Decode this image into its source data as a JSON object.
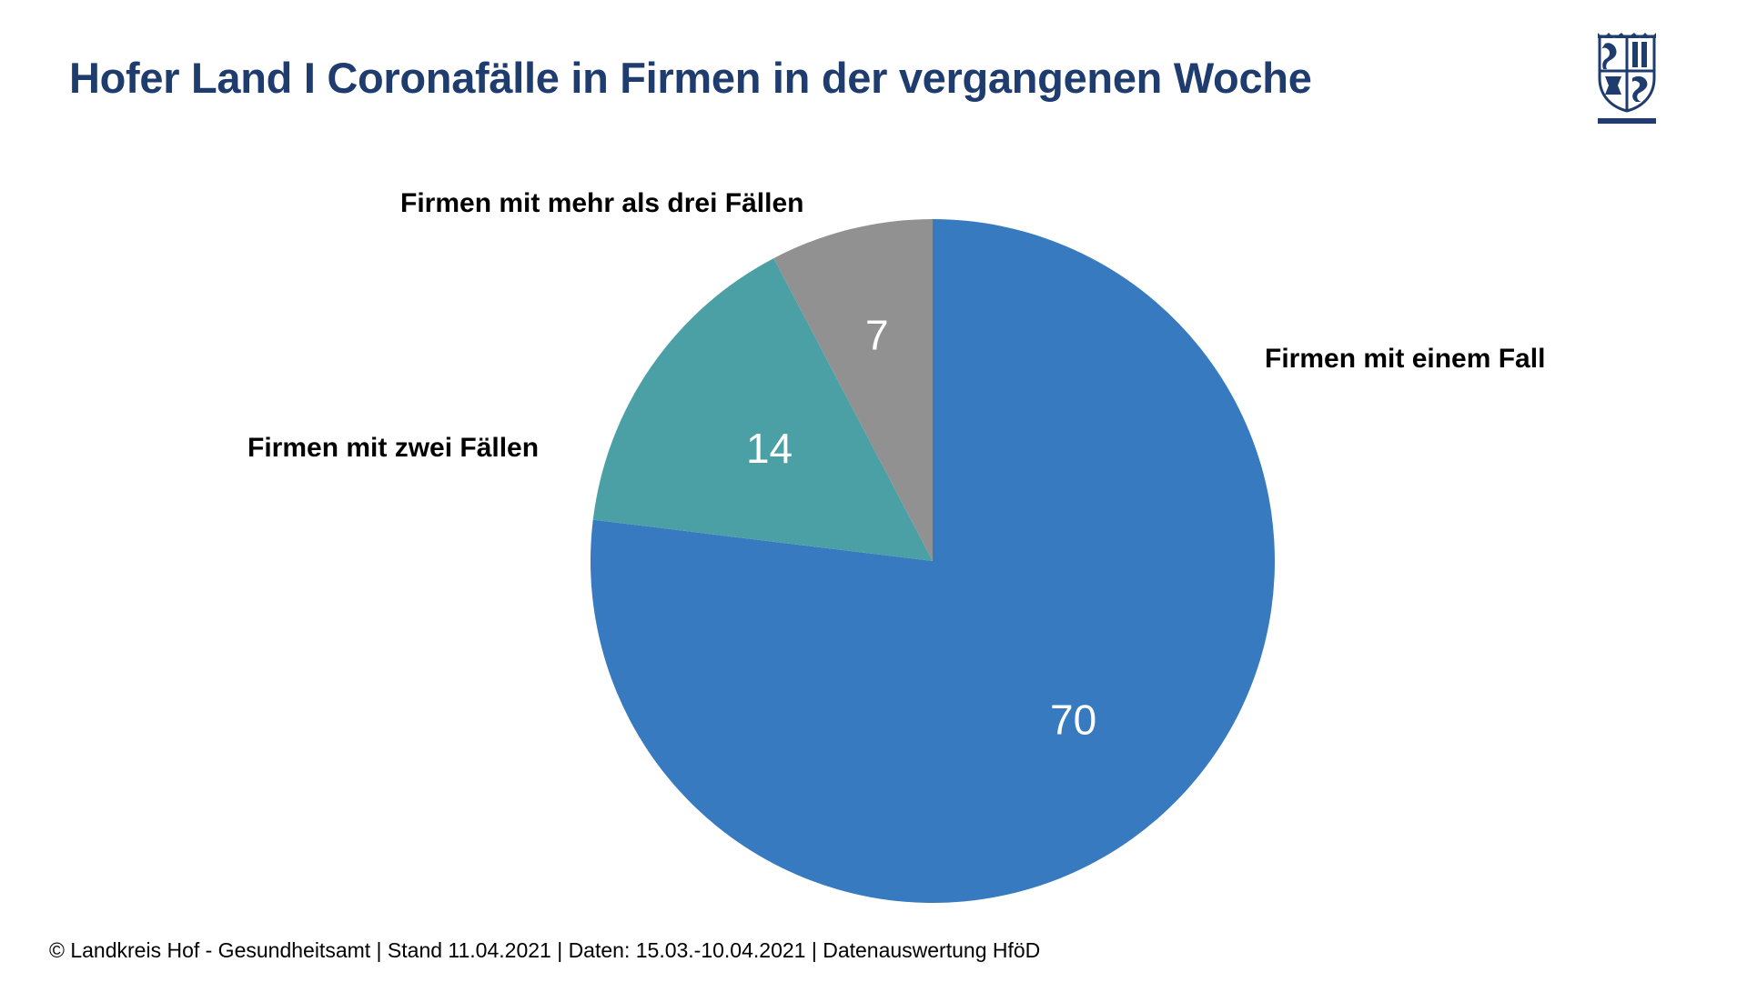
{
  "slide": {
    "title": "Hofer Land I Coronafälle in Firmen in der vergangenen Woche",
    "footer": "© Landkreis Hof - Gesundheitsamt | Stand 11.04.2021 | Daten: 15.03.-10.04.2021 | Datenauswertung HföD",
    "logo_icon": "coat-of-arms-icon"
  },
  "colors": {
    "title": "#1f3c6e",
    "logo": "#1f3c6e"
  },
  "chart_data": {
    "type": "pie",
    "title": "",
    "start_angle_deg": 0,
    "direction": "clockwise",
    "slices": [
      {
        "label": "Firmen mit einem Fall",
        "value": 70,
        "color": "#377ac0"
      },
      {
        "label": "Firmen mit zwei Fällen",
        "value": 14,
        "color": "#4aa0a5"
      },
      {
        "label": "Firmen mit mehr als drei Fällen",
        "value": 7,
        "color": "#919191"
      }
    ]
  }
}
